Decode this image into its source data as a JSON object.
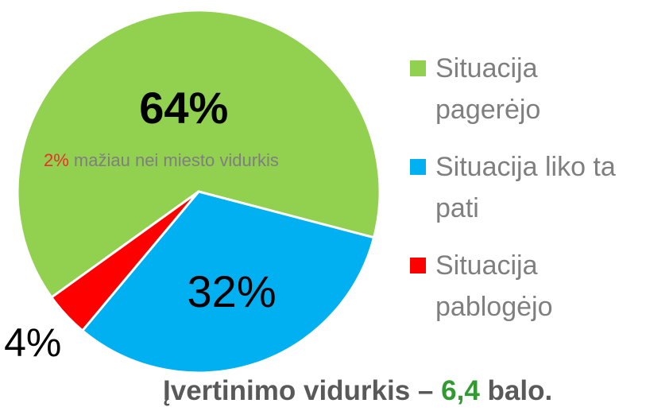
{
  "chart_data": {
    "type": "pie",
    "categories": [
      "Situacija pagerėjo",
      "Situacija liko ta pati",
      "Situacija pablogėjo"
    ],
    "values": [
      64,
      32,
      4
    ],
    "value_labels": [
      "64%",
      "32%",
      "4%"
    ],
    "colors": [
      "#92d050",
      "#00b0f0",
      "#ff0000"
    ],
    "annotation": {
      "highlight": "2%",
      "text": "mažiau nei miesto vidurkis"
    },
    "footer": {
      "before": "Įvertinimo vidurkis –",
      "highlight": "6,4",
      "after": "balo."
    }
  }
}
